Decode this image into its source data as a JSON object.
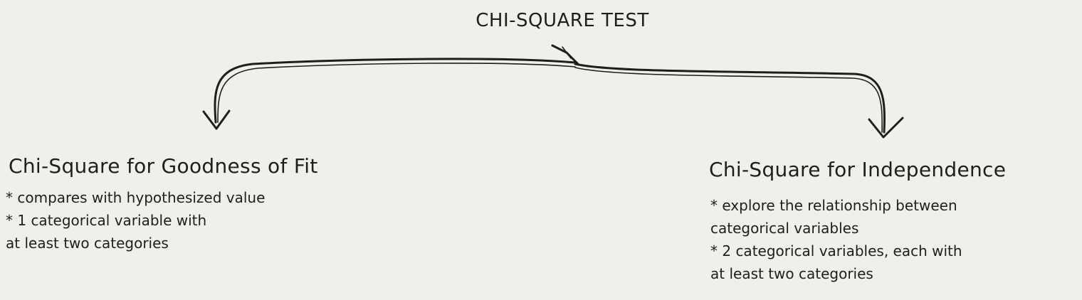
{
  "title": "CHI-SQUARE TEST",
  "branches": [
    {
      "title": "Chi-Square for Goodness of Fit",
      "lines": [
        "* compares with hypothesized value",
        "* 1 categorical variable with",
        "at least two categories"
      ]
    },
    {
      "title": "Chi-Square for Independence",
      "lines": [
        "* explore the relationship between",
        "categorical variables",
        "* 2 categorical variables, each with",
        "at least two categories"
      ]
    }
  ],
  "colors": {
    "background": "#f0f0ea",
    "ink": "#1e1e1e"
  }
}
